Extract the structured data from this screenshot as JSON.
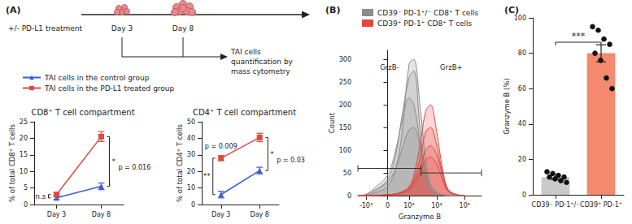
{
  "panel_labels": [
    "(A)",
    "(B)",
    "(C)"
  ],
  "timeline": {
    "treatment": "+/- PD-L1 treatment",
    "days": [
      "Day 3",
      "Day 8"
    ],
    "readout": "TAI cells quantification by mass cytometry"
  },
  "chart_data": [
    {
      "type": "line",
      "title": "CD8⁺ T cell compartment",
      "y_label": "% of total CD8⁺ T cells",
      "categories": [
        "Day 3",
        "Day 8"
      ],
      "ylim": [
        0,
        25
      ],
      "yticks": [
        0,
        5,
        10,
        15,
        20,
        25
      ],
      "legend": "top",
      "series": [
        {
          "name": "TAI cells in the control group",
          "color": "#3d5bd9",
          "marker": "triangle",
          "values": [
            2,
            5.5
          ],
          "errors": [
            0.5,
            1
          ]
        },
        {
          "name": "TAI cells in the PD-L1 treated group",
          "color": "#e0483e",
          "marker": "square",
          "values": [
            3,
            20.5
          ],
          "errors": [
            0.6,
            1.5
          ]
        }
      ],
      "annotations": [
        {
          "category": "Day 3",
          "texts": [
            "n.s"
          ]
        },
        {
          "category": "Day 8",
          "texts": [
            "*",
            "p = 0.016"
          ]
        }
      ]
    },
    {
      "type": "line",
      "title": "CD4⁺ T cell compartment",
      "y_label": "% of total CD4⁺ T cells",
      "categories": [
        "Day 3",
        "Day 8"
      ],
      "ylim": [
        0,
        50
      ],
      "yticks": [
        0,
        10,
        20,
        30,
        40,
        50
      ],
      "series": [
        {
          "name": "TAI cells in the control group",
          "color": "#3d5bd9",
          "marker": "triangle",
          "values": [
            6,
            20.5
          ],
          "errors": [
            2,
            2
          ]
        },
        {
          "name": "TAI cells in the PD-L1 treated group",
          "color": "#e0483e",
          "marker": "square",
          "values": [
            28,
            40.5
          ],
          "errors": [
            1.5,
            2.5
          ]
        }
      ],
      "annotations": [
        {
          "category": "Day 3",
          "texts": [
            "**",
            "p = 0.009"
          ]
        },
        {
          "category": "Day 8",
          "texts": [
            "*",
            "p = 0.03"
          ]
        }
      ]
    },
    {
      "type": "area",
      "x_label": "Granzyme B",
      "y_label": "Count",
      "log": "x",
      "legend": "top",
      "xlim": [
        -2000,
        400000
      ],
      "xticks": [
        {
          "value": -1000,
          "label": "-10³"
        },
        0,
        {
          "value": 1000,
          "label": "10³"
        },
        {
          "value": 10000,
          "label": "10⁴"
        },
        {
          "value": 100000,
          "label": "10⁵"
        }
      ],
      "ylim": [
        0,
        320
      ],
      "yticks": [
        0,
        50,
        100,
        150,
        200,
        250,
        300
      ],
      "x": [
        -2000,
        -1000,
        -500,
        0,
        250,
        500,
        1000,
        1500,
        2500,
        4000,
        6000,
        10000,
        16000,
        25000,
        50000,
        100000
      ],
      "series": [
        {
          "name": "CD39⁻ PD-1⁺/⁻ CD8⁺ T cells",
          "color": "#8c8c8c",
          "samples": [
            [
              0,
              0,
              5,
              20,
              60,
              130,
              290,
              300,
              200,
              80,
              25,
              8,
              2,
              0,
              0,
              0
            ],
            [
              0,
              2,
              10,
              35,
              90,
              170,
              260,
              275,
              150,
              50,
              15,
              5,
              1,
              0,
              0,
              0
            ],
            [
              0,
              3,
              15,
              45,
              100,
              160,
              215,
              200,
              120,
              45,
              12,
              4,
              1,
              0,
              0,
              0
            ],
            [
              0,
              2,
              10,
              30,
              60,
              100,
              145,
              150,
              110,
              55,
              20,
              6,
              2,
              0,
              0,
              0
            ]
          ]
        },
        {
          "name": "CD39⁺ PD-1⁺ CD8⁺ T cells",
          "color": "#e2473f",
          "samples": [
            [
              0,
              0,
              0,
              2,
              4,
              8,
              20,
              45,
              110,
              185,
              200,
              140,
              60,
              15,
              2,
              0
            ],
            [
              0,
              0,
              0,
              1,
              3,
              6,
              15,
              35,
              80,
              140,
              150,
              110,
              50,
              12,
              2,
              0
            ],
            [
              0,
              0,
              1,
              2,
              4,
              8,
              18,
              30,
              60,
              100,
              110,
              90,
              45,
              12,
              3,
              0
            ],
            [
              0,
              0,
              0,
              2,
              4,
              7,
              12,
              25,
              50,
              78,
              85,
              70,
              35,
              10,
              2,
              0
            ]
          ]
        }
      ],
      "gates": [
        {
          "label": "GrzB-",
          "x": [
            -2000,
            2750
          ],
          "y": 60
        },
        {
          "label": "GrzB+",
          "x": [
            2750,
            400000
          ],
          "y": 50
        }
      ]
    },
    {
      "type": "bar",
      "y_label": "Granzyme B (%)",
      "categories": [
        "CD39⁻ PD-1⁺/⁻",
        "CD39⁺ PD-1⁺"
      ],
      "values": [
        10,
        80
      ],
      "errors": [
        1.3,
        4.8
      ],
      "colors": [
        "#c9c9c9",
        "#f5896d"
      ],
      "points": [
        [
          13,
          12,
          11,
          10,
          10,
          9,
          8,
          7
        ],
        [
          95,
          93,
          88,
          85,
          80,
          76,
          66,
          60
        ]
      ],
      "ylim": [
        0,
        100
      ],
      "yticks": [
        0,
        20,
        40,
        60,
        80,
        100
      ],
      "annotation": "***"
    }
  ]
}
